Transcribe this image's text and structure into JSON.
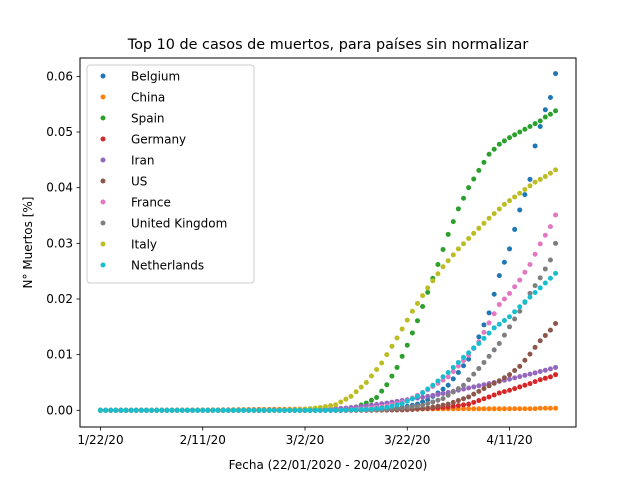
{
  "chart_data": {
    "type": "scatter",
    "title": "Top 10 de casos de muertos, para países sin normalizar",
    "xlabel": "Fecha (22/01/2020 - 20/04/2020)",
    "ylabel": "N° Muertos [%]",
    "x_start": "1/22/20",
    "x_end": "4/20/20",
    "xlim": [
      "1/18/20",
      "4/24/20"
    ],
    "x_tick_labels": [
      "1/22/20",
      "2/11/20",
      "3/2/20",
      "3/22/20",
      "4/11/20"
    ],
    "ylim": [
      -0.003,
      0.0633
    ],
    "y_ticks": [
      0.0,
      0.01,
      0.02,
      0.03,
      0.04,
      0.05,
      0.06
    ],
    "y_tick_labels": [
      "0.00",
      "0.01",
      "0.02",
      "0.03",
      "0.04",
      "0.05",
      "0.06"
    ],
    "legend_position": "top-left",
    "grid": false,
    "series": [
      {
        "name": "Belgium",
        "color": "#1f77b4",
        "points": [
          [
            "3/10/20",
            0
          ],
          [
            "3/12/20",
            3e-05
          ],
          [
            "3/14/20",
            5e-05
          ],
          [
            "3/16/20",
            0.0001
          ],
          [
            "3/18/20",
            0.0002
          ],
          [
            "3/20/20",
            0.0004
          ],
          [
            "3/22/20",
            0.0007
          ],
          [
            "3/24/20",
            0.0011
          ],
          [
            "3/26/20",
            0.0019
          ],
          [
            "3/28/20",
            0.0031
          ],
          [
            "3/30/20",
            0.0045
          ],
          [
            "4/1/20",
            0.0068
          ],
          [
            "4/3/20",
            0.0092
          ],
          [
            "4/5/20",
            0.0132
          ],
          [
            "4/7/20",
            0.0175
          ],
          [
            "4/9/20",
            0.0242
          ],
          [
            "4/11/20",
            0.029
          ],
          [
            "4/13/20",
            0.036
          ],
          [
            "4/15/20",
            0.0415
          ],
          [
            "4/16/20",
            0.0475
          ],
          [
            "4/17/20",
            0.051
          ],
          [
            "4/18/20",
            0.054
          ],
          [
            "4/19/20",
            0.0562
          ],
          [
            "4/20/20",
            0.0605
          ]
        ]
      },
      {
        "name": "China",
        "color": "#ff7f0e",
        "points": [
          [
            "1/22/20",
            0
          ],
          [
            "2/1/20",
            2e-05
          ],
          [
            "2/11/20",
            5e-05
          ],
          [
            "2/21/20",
            0.00015
          ],
          [
            "3/2/20",
            0.00022
          ],
          [
            "3/12/20",
            0.00025
          ],
          [
            "3/22/20",
            0.00026
          ],
          [
            "4/1/20",
            0.00027
          ],
          [
            "4/11/20",
            0.00027
          ],
          [
            "4/16/20",
            0.00029
          ],
          [
            "4/17/20",
            0.00037
          ],
          [
            "4/18/20",
            0.00037
          ],
          [
            "4/19/20",
            0.00037
          ],
          [
            "4/20/20",
            0.00037
          ]
        ]
      },
      {
        "name": "Spain",
        "color": "#2ca02c",
        "points": [
          [
            "3/1/20",
            0
          ],
          [
            "3/4/20",
            1e-05
          ],
          [
            "3/6/20",
            4e-05
          ],
          [
            "3/8/20",
            0.0001
          ],
          [
            "3/10/20",
            0.0002
          ],
          [
            "3/12/20",
            0.0006
          ],
          [
            "3/14/20",
            0.0013
          ],
          [
            "3/16/20",
            0.0023
          ],
          [
            "3/18/20",
            0.0046
          ],
          [
            "3/20/20",
            0.0077
          ],
          [
            "3/22/20",
            0.0117
          ],
          [
            "3/24/20",
            0.0161
          ],
          [
            "3/26/20",
            0.0212
          ],
          [
            "3/28/20",
            0.0262
          ],
          [
            "3/30/20",
            0.0316
          ],
          [
            "4/1/20",
            0.0362
          ],
          [
            "4/3/20",
            0.04
          ],
          [
            "4/5/20",
            0.0431
          ],
          [
            "4/7/20",
            0.046
          ],
          [
            "4/9/20",
            0.0478
          ],
          [
            "4/11/20",
            0.049
          ],
          [
            "4/13/20",
            0.05
          ],
          [
            "4/15/20",
            0.051
          ],
          [
            "4/17/20",
            0.052
          ],
          [
            "4/18/20",
            0.0527
          ],
          [
            "4/19/20",
            0.0532
          ],
          [
            "4/20/20",
            0.0538
          ]
        ]
      },
      {
        "name": "Germany",
        "color": "#d62728",
        "points": [
          [
            "3/9/20",
            0
          ],
          [
            "3/14/20",
            1e-05
          ],
          [
            "3/18/20",
            4e-05
          ],
          [
            "3/22/20",
            0.0001
          ],
          [
            "3/26/20",
            0.0003
          ],
          [
            "3/30/20",
            0.0006
          ],
          [
            "4/3/20",
            0.0011
          ],
          [
            "4/7/20",
            0.0024
          ],
          [
            "4/9/20",
            0.0031
          ],
          [
            "4/11/20",
            0.0036
          ],
          [
            "4/13/20",
            0.0042
          ],
          [
            "4/15/20",
            0.0048
          ],
          [
            "4/17/20",
            0.0055
          ],
          [
            "4/19/20",
            0.006
          ],
          [
            "4/20/20",
            0.0064
          ]
        ]
      },
      {
        "name": "Iran",
        "color": "#9467bd",
        "points": [
          [
            "2/19/20",
            0
          ],
          [
            "2/23/20",
            1e-05
          ],
          [
            "2/27/20",
            3e-05
          ],
          [
            "3/2/20",
            0.0001
          ],
          [
            "3/6/20",
            0.00022
          ],
          [
            "3/10/20",
            0.0004
          ],
          [
            "3/14/20",
            0.0008
          ],
          [
            "3/18/20",
            0.0013
          ],
          [
            "3/22/20",
            0.0019
          ],
          [
            "3/26/20",
            0.0025
          ],
          [
            "3/30/20",
            0.0032
          ],
          [
            "4/3/20",
            0.004
          ],
          [
            "4/7/20",
            0.0048
          ],
          [
            "4/11/20",
            0.0056
          ],
          [
            "4/15/20",
            0.0065
          ],
          [
            "4/18/20",
            0.0072
          ],
          [
            "4/20/20",
            0.0077
          ]
        ]
      },
      {
        "name": "US",
        "color": "#8c564b",
        "points": [
          [
            "2/29/20",
            0
          ],
          [
            "3/8/20",
            5e-06
          ],
          [
            "3/14/20",
            2e-05
          ],
          [
            "3/18/20",
            5e-05
          ],
          [
            "3/22/20",
            0.00012
          ],
          [
            "3/26/20",
            0.0004
          ],
          [
            "3/30/20",
            0.0011
          ],
          [
            "4/3/20",
            0.0024
          ],
          [
            "4/7/20",
            0.0044
          ],
          [
            "4/9/20",
            0.0053
          ],
          [
            "4/11/20",
            0.0064
          ],
          [
            "4/13/20",
            0.0079
          ],
          [
            "4/15/20",
            0.0101
          ],
          [
            "4/17/20",
            0.0125
          ],
          [
            "4/19/20",
            0.0144
          ],
          [
            "4/20/20",
            0.0156
          ]
        ]
      },
      {
        "name": "France",
        "color": "#e377c2",
        "points": [
          [
            "2/15/20",
            0
          ],
          [
            "3/1/20",
            1e-05
          ],
          [
            "3/6/20",
            3e-05
          ],
          [
            "3/10/20",
            0.0001
          ],
          [
            "3/14/20",
            0.0003
          ],
          [
            "3/18/20",
            0.0008
          ],
          [
            "3/22/20",
            0.0017
          ],
          [
            "3/26/20",
            0.0037
          ],
          [
            "3/30/20",
            0.006
          ],
          [
            "4/3/20",
            0.0099
          ],
          [
            "4/5/20",
            0.0123
          ],
          [
            "4/7/20",
            0.0157
          ],
          [
            "4/9/20",
            0.019
          ],
          [
            "4/11/20",
            0.021
          ],
          [
            "4/13/20",
            0.0234
          ],
          [
            "4/15/20",
            0.0262
          ],
          [
            "4/17/20",
            0.0299
          ],
          [
            "4/19/20",
            0.033
          ],
          [
            "4/20/20",
            0.0351
          ]
        ]
      },
      {
        "name": "United Kingdom",
        "color": "#7f7f7f",
        "points": [
          [
            "3/5/20",
            0
          ],
          [
            "3/9/20",
            1e-05
          ],
          [
            "3/13/20",
            4e-05
          ],
          [
            "3/17/20",
            0.0001
          ],
          [
            "3/21/20",
            0.0004
          ],
          [
            "3/25/20",
            0.0009
          ],
          [
            "3/29/20",
            0.0021
          ],
          [
            "4/2/20",
            0.0045
          ],
          [
            "4/5/20",
            0.0075
          ],
          [
            "4/7/20",
            0.0097
          ],
          [
            "4/9/20",
            0.012
          ],
          [
            "4/11/20",
            0.015
          ],
          [
            "4/13/20",
            0.0178
          ],
          [
            "4/15/20",
            0.021
          ],
          [
            "4/17/20",
            0.0238
          ],
          [
            "4/19/20",
            0.027
          ],
          [
            "4/20/20",
            0.03
          ]
        ]
      },
      {
        "name": "Italy",
        "color": "#bcbd22",
        "points": [
          [
            "2/21/20",
            0
          ],
          [
            "2/25/20",
            2e-05
          ],
          [
            "2/29/20",
            0.0001
          ],
          [
            "3/2/20",
            0.0002
          ],
          [
            "3/5/20",
            0.0005
          ],
          [
            "3/8/20",
            0.001
          ],
          [
            "3/11/20",
            0.0025
          ],
          [
            "3/14/20",
            0.005
          ],
          [
            "3/17/20",
            0.0085
          ],
          [
            "3/20/20",
            0.013
          ],
          [
            "3/23/20",
            0.0178
          ],
          [
            "3/26/20",
            0.022
          ],
          [
            "3/29/20",
            0.0258
          ],
          [
            "4/1/20",
            0.029
          ],
          [
            "4/4/20",
            0.0318
          ],
          [
            "4/7/20",
            0.0345
          ],
          [
            "4/10/20",
            0.037
          ],
          [
            "4/13/20",
            0.039
          ],
          [
            "4/16/20",
            0.041
          ],
          [
            "4/18/20",
            0.042
          ],
          [
            "4/20/20",
            0.0432
          ]
        ]
      },
      {
        "name": "Netherlands",
        "color": "#17becf",
        "points": [
          [
            "3/6/20",
            0
          ],
          [
            "3/9/20",
            2e-05
          ],
          [
            "3/12/20",
            0.0001
          ],
          [
            "3/15/20",
            0.0002
          ],
          [
            "3/18/20",
            0.0005
          ],
          [
            "3/21/20",
            0.0012
          ],
          [
            "3/24/20",
            0.0025
          ],
          [
            "3/27/20",
            0.0045
          ],
          [
            "3/30/20",
            0.0068
          ],
          [
            "4/2/20",
            0.0095
          ],
          [
            "4/5/20",
            0.012
          ],
          [
            "4/8/20",
            0.0148
          ],
          [
            "4/11/20",
            0.0168
          ],
          [
            "4/14/20",
            0.0195
          ],
          [
            "4/17/20",
            0.022
          ],
          [
            "4/20/20",
            0.0246
          ]
        ]
      }
    ]
  }
}
